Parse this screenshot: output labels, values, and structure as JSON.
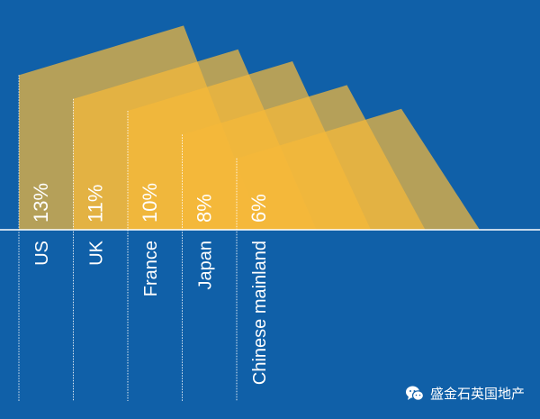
{
  "chart_data": {
    "type": "area",
    "categories": [
      "US",
      "UK",
      "France",
      "Japan",
      "Chinese mainland"
    ],
    "values": [
      13,
      11,
      10,
      8,
      6
    ],
    "value_labels": [
      "13%",
      "11%",
      "10%",
      "8%",
      "6%"
    ],
    "unit": "%",
    "title": "",
    "xlabel": "",
    "ylabel": "",
    "ylim": [
      0,
      14
    ],
    "grid": false,
    "legend": "none"
  },
  "watermark": {
    "text": "盛金石英国地产",
    "icon": "wechat-icon"
  },
  "colors": {
    "background": "#1060a8",
    "baseline": "#ffffff",
    "shape_fill": "#f5b83a",
    "label_text": "#ffffff"
  }
}
